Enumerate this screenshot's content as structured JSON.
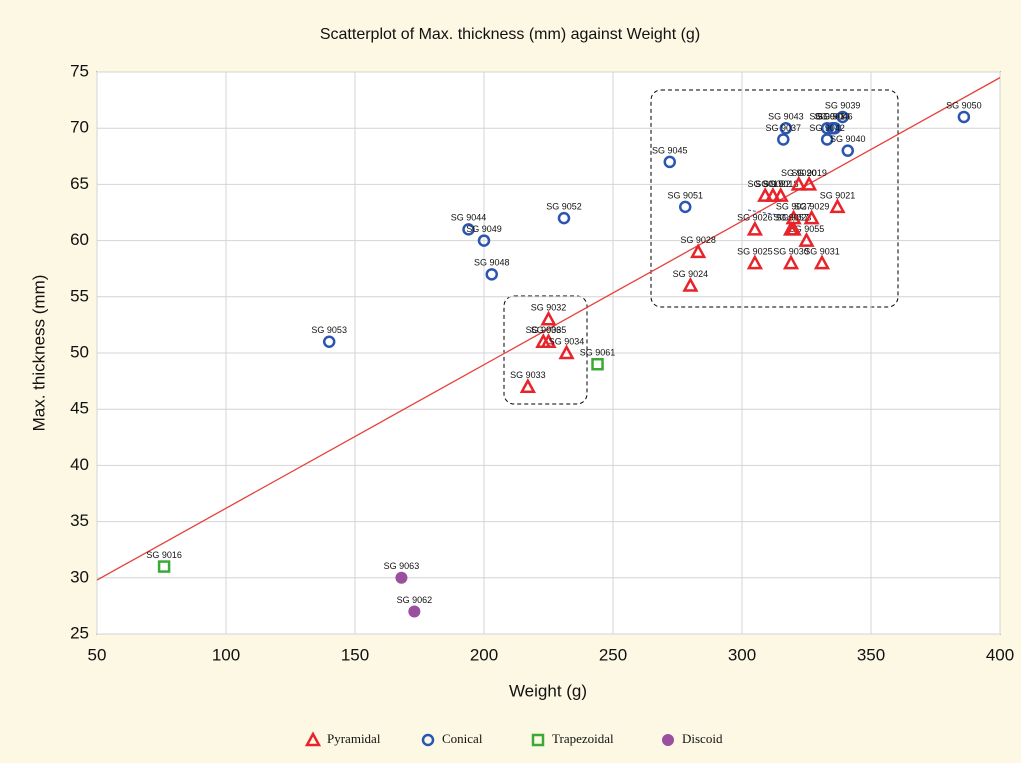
{
  "chart_data": {
    "type": "scatter",
    "title": "Scatterplot of Max. thickness (mm) against Weight (g)",
    "x_label": "Weight (g)",
    "y_label": "Max. thickness (mm)",
    "xlim": [
      50,
      400
    ],
    "xticks": [
      50,
      100,
      150,
      200,
      250,
      300,
      350,
      400
    ],
    "ylim": [
      25,
      75
    ],
    "yticks": [
      25,
      30,
      35,
      40,
      45,
      50,
      55,
      60,
      65,
      70,
      75
    ],
    "grid": true,
    "legend": "bottom",
    "trend_line": {
      "x": [
        50,
        400
      ],
      "y": [
        29.8,
        74.5
      ],
      "color": "#e8403a"
    },
    "series": [
      {
        "name": "Pyramidal",
        "color": "#e8232a",
        "marker": "triangle",
        "labels": [
          "SG 9032",
          "SG 9036",
          "SG 9035",
          "SG 9034",
          "SG 9033",
          "SG 9024",
          "SG 9028",
          "SG 9026",
          "SG 9025",
          "SG 9030",
          "SG 9031",
          "SG 9055",
          "SG 9023",
          "SG 9029",
          "SG 9027",
          "SG 9057",
          "SG 9022",
          "SG 9017",
          "SG 9018",
          "SG 9020",
          "SG 9019",
          "SG 9021"
        ],
        "x": [
          225,
          223,
          225,
          232,
          217,
          280,
          283,
          305,
          305,
          319,
          331,
          325,
          320,
          327,
          320,
          319,
          312,
          309,
          315,
          322,
          326,
          337
        ],
        "values": [
          53,
          51,
          51,
          50,
          47,
          56,
          59,
          61,
          58,
          58,
          58,
          60,
          61,
          62,
          62,
          61,
          64,
          64,
          64,
          65,
          65,
          63
        ]
      },
      {
        "name": "Conical",
        "color": "#2a55b0",
        "marker": "circle",
        "labels": [
          "SG 9053",
          "SG 9044",
          "SG 9049",
          "SG 9048",
          "SG 9052",
          "SG 9045",
          "SG 9051",
          "SG 9043",
          "SG 9037",
          "SG 9041",
          "SG 9038",
          "SG 9039",
          "SG 9046",
          "SG 9042",
          "SG 9040",
          "SG 9050"
        ],
        "x": [
          140,
          194,
          200,
          203,
          231,
          272,
          278,
          317,
          316,
          333,
          335,
          339,
          336,
          333,
          341,
          386
        ],
        "values": [
          51,
          61,
          60,
          57,
          62,
          67,
          63,
          70,
          69,
          70,
          70,
          71,
          70,
          69,
          68,
          71
        ]
      },
      {
        "name": "Trapezoidal",
        "color": "#3aaa35",
        "marker": "square",
        "labels": [
          "SG 9016",
          "SG 9061"
        ],
        "x": [
          76,
          244
        ],
        "values": [
          31,
          49
        ]
      },
      {
        "name": "Discoid",
        "color": "#9b4fa0",
        "marker": "dot",
        "labels": [
          "SG 9063",
          "SG 9062"
        ],
        "x": [
          168,
          173
        ],
        "values": [
          30,
          27
        ]
      }
    ]
  }
}
